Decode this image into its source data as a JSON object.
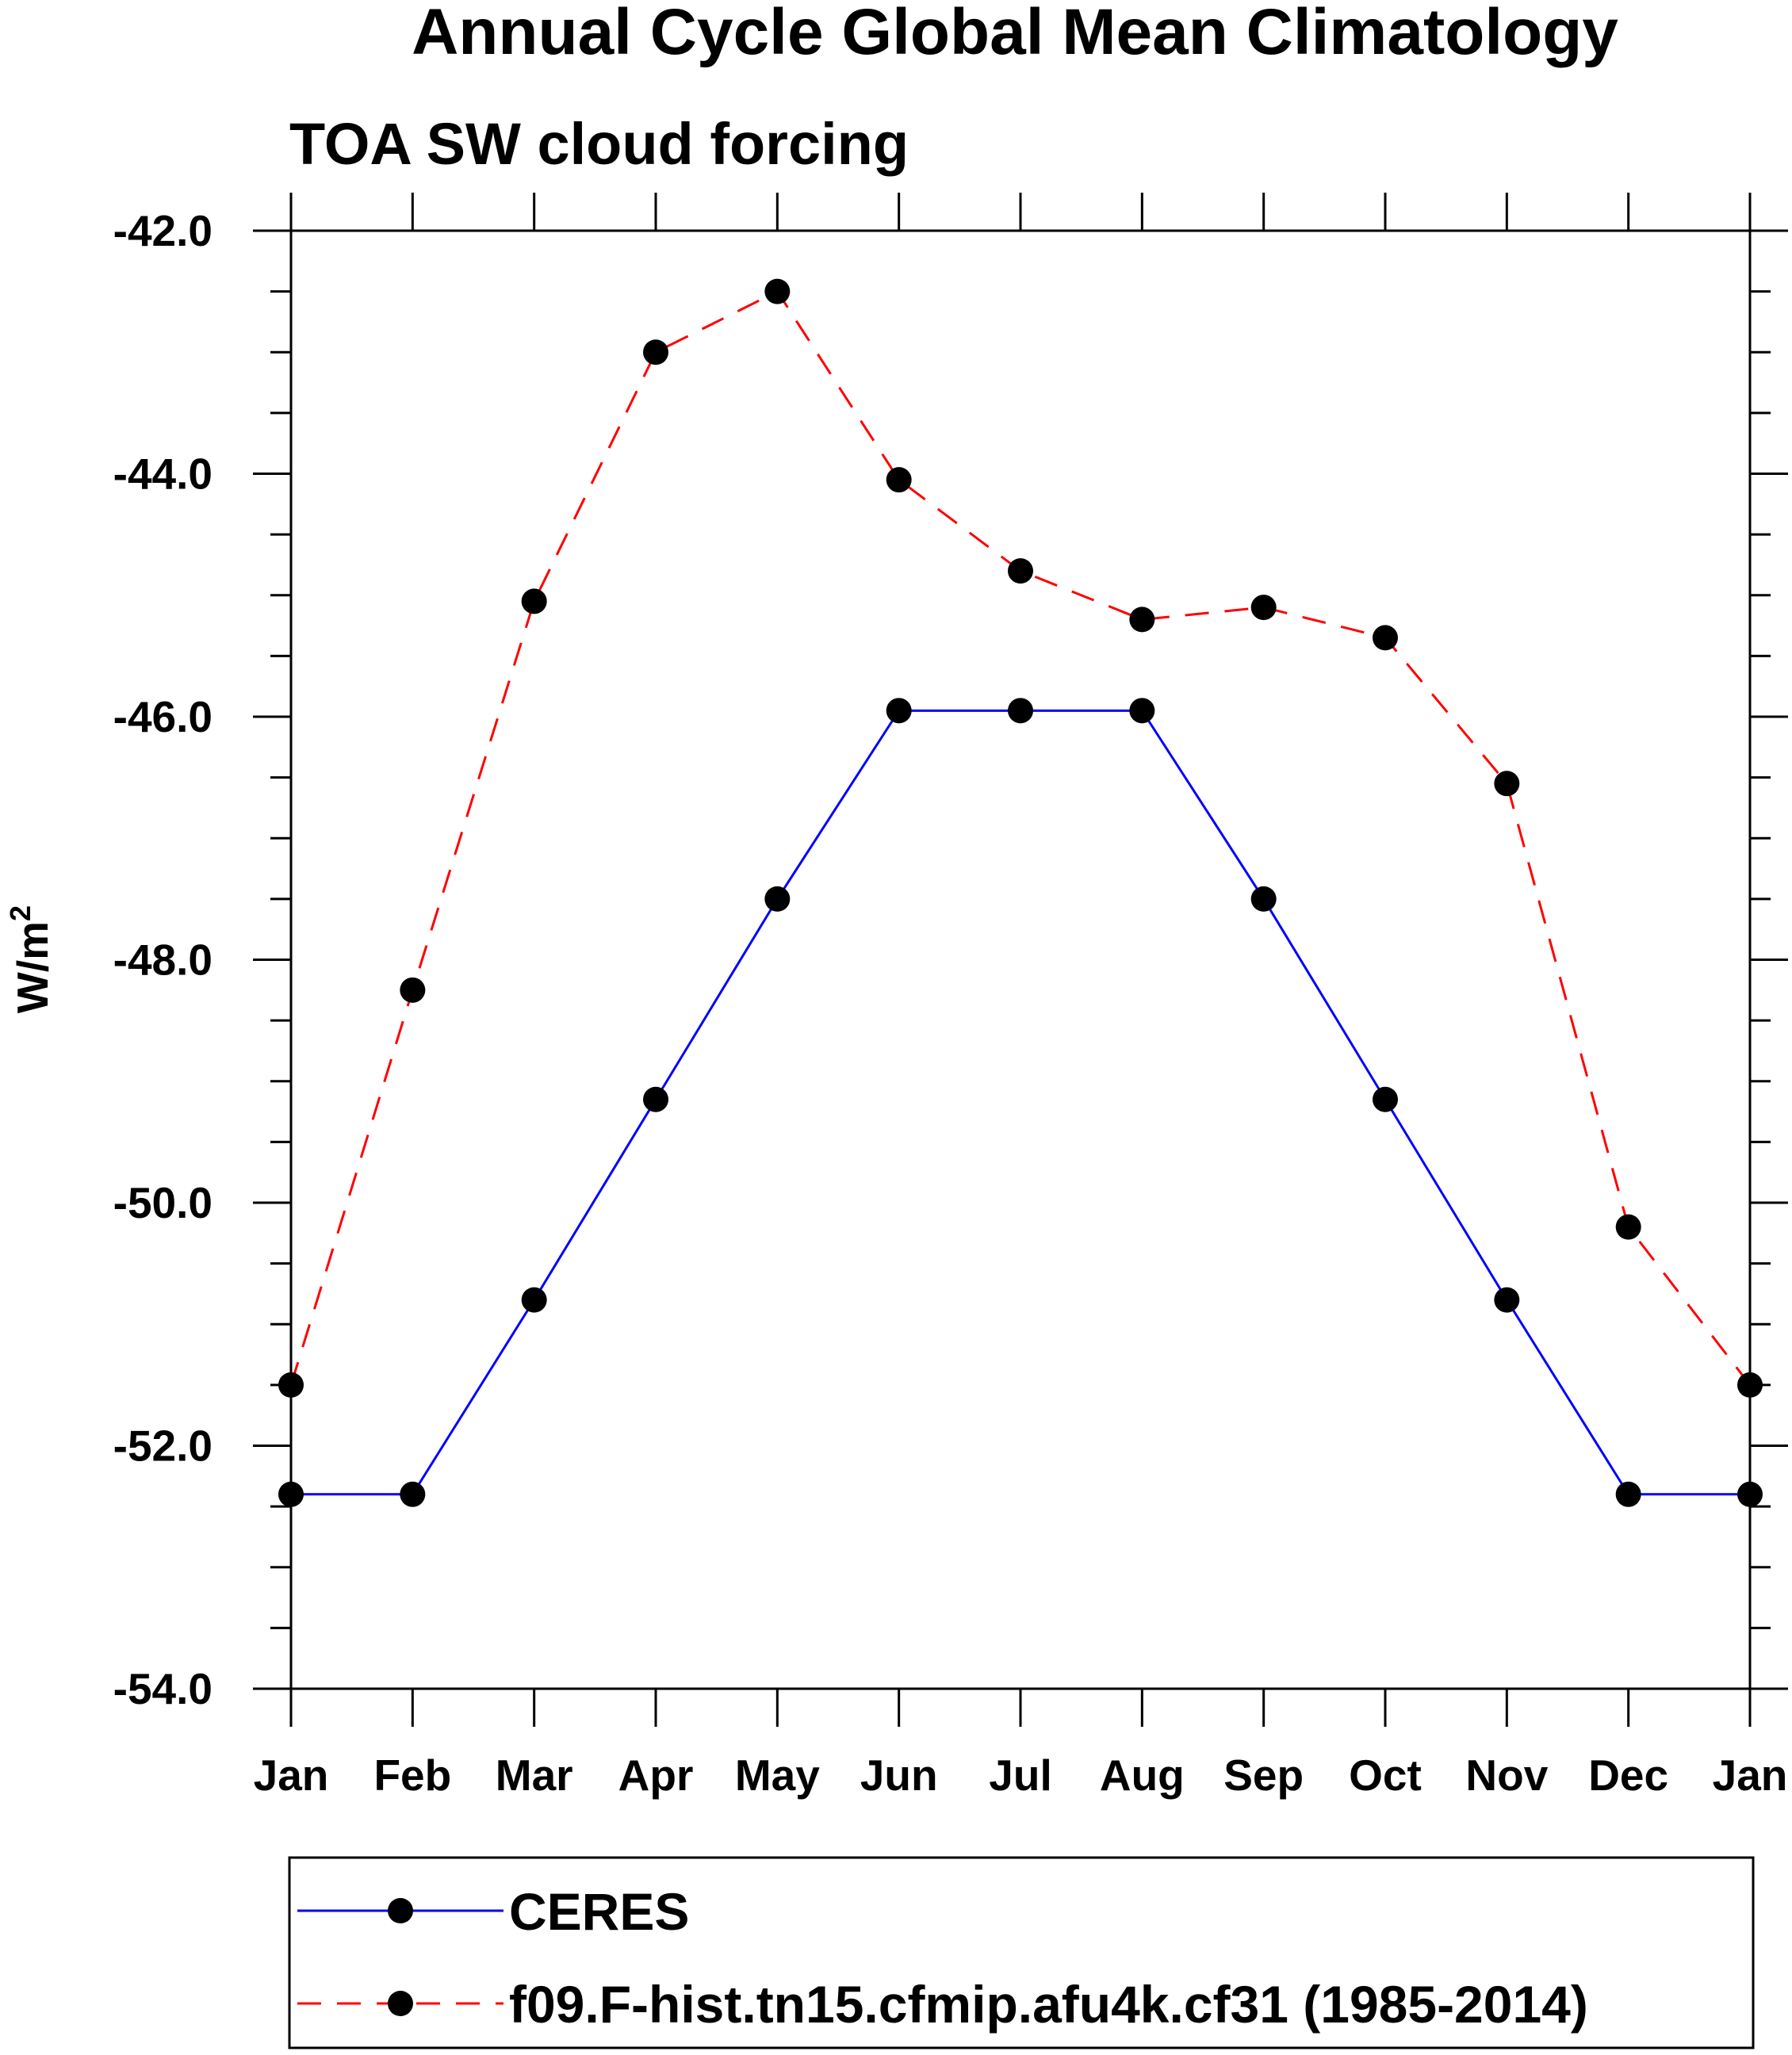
{
  "chart_data": {
    "type": "line",
    "title": "Annual Cycle Global Mean Climatology",
    "subtitle": "TOA SW cloud forcing",
    "xlabel": "",
    "ylabel_base": "W/m",
    "ylabel_sup": "2",
    "categories": [
      "Jan",
      "Feb",
      "Mar",
      "Apr",
      "May",
      "Jun",
      "Jul",
      "Aug",
      "Sep",
      "Oct",
      "Nov",
      "Dec",
      "Jan"
    ],
    "ylim": [
      -54.0,
      -42.0
    ],
    "yticks": [
      -42.0,
      -44.0,
      -46.0,
      -48.0,
      -50.0,
      -52.0,
      -54.0
    ],
    "ytick_labels": [
      "-42.0",
      "-44.0",
      "-46.0",
      "-48.0",
      "-50.0",
      "-52.0",
      "-54.0"
    ],
    "y_minor_step": 0.5,
    "grid": false,
    "legend_position": "bottom",
    "series": [
      {
        "name": "CERES",
        "color": "#0000ff",
        "line_style": "solid",
        "marker": "filled-circle",
        "values": [
          -52.4,
          -52.4,
          -50.8,
          -49.15,
          -47.5,
          -45.95,
          -45.95,
          -45.95,
          -47.5,
          -49.15,
          -50.8,
          -52.4,
          -52.4
        ]
      },
      {
        "name": "f09.F-hist.tn15.cfmip.afu4k.cf31 (1985-2014)",
        "color": "#ff0000",
        "line_style": "dashed",
        "marker": "filled-circle",
        "values": [
          -51.5,
          -48.25,
          -45.05,
          -43.0,
          -42.5,
          -44.05,
          -44.8,
          -45.2,
          -45.1,
          -45.35,
          -46.55,
          -50.2,
          -51.5
        ]
      }
    ]
  }
}
